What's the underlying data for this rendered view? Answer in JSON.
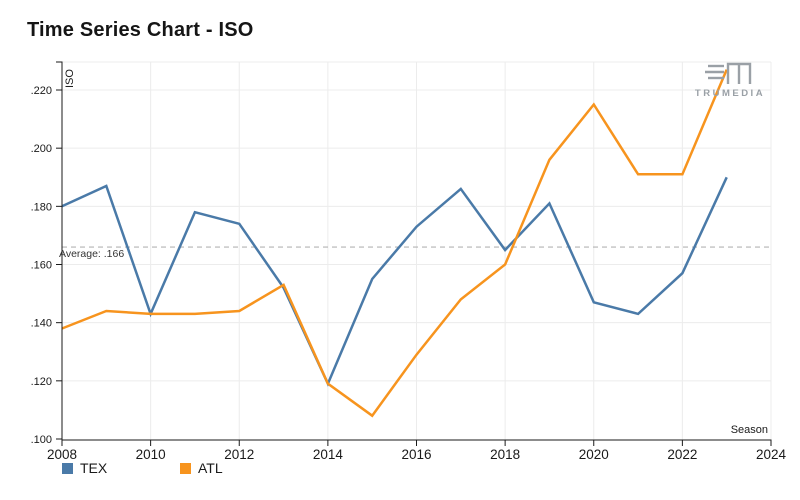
{
  "title": "Time Series Chart - ISO",
  "logo": {
    "text": "TRUMEDIA",
    "color": "#9aa0a6"
  },
  "average": {
    "label": "Average: .166",
    "value": 0.166
  },
  "chart_data": {
    "type": "line",
    "title": "Time Series Chart - ISO",
    "xlabel": "Season",
    "ylabel": "ISO",
    "x": [
      2008,
      2009,
      2010,
      2011,
      2012,
      2013,
      2014,
      2015,
      2016,
      2017,
      2018,
      2019,
      2020,
      2021,
      2022,
      2023
    ],
    "series": [
      {
        "name": "TEX",
        "color": "#4a7aa8",
        "values": [
          0.18,
          0.187,
          0.143,
          0.178,
          0.174,
          0.152,
          0.119,
          0.155,
          0.173,
          0.186,
          0.165,
          0.181,
          0.147,
          0.143,
          0.157,
          0.19
        ]
      },
      {
        "name": "ATL",
        "color": "#f7941e",
        "values": [
          0.138,
          0.144,
          0.143,
          0.143,
          0.144,
          0.153,
          0.119,
          0.108,
          0.129,
          0.148,
          0.16,
          0.196,
          0.215,
          0.191,
          0.191,
          0.227
        ]
      }
    ],
    "average_line": {
      "value": 0.166,
      "style": "dashed",
      "color": "#b3b3b3"
    },
    "xlim": [
      2008,
      2024
    ],
    "ylim": [
      0.1,
      0.23
    ],
    "x_ticks": [
      2008,
      2010,
      2012,
      2014,
      2016,
      2018,
      2020,
      2022,
      2024
    ],
    "y_ticks": [
      0.1,
      0.12,
      0.14,
      0.16,
      0.18,
      0.2,
      0.22
    ],
    "y_tick_labels": [
      ".100",
      ".120",
      ".140",
      ".160",
      ".180",
      ".200",
      ".220"
    ],
    "grid": true,
    "legend_position": "bottom-left"
  }
}
